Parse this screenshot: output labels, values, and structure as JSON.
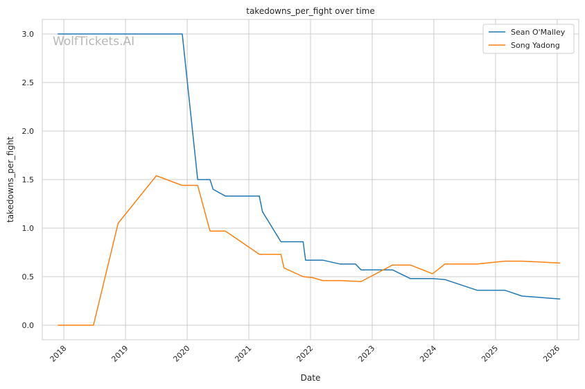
{
  "chart_data": {
    "type": "line",
    "title": "takedowns_per_fight over time",
    "xlabel": "Date",
    "ylabel": "takedowns_per_fight",
    "watermark": "WolfTickets.AI",
    "xlim": [
      2017.65,
      2026.35
    ],
    "ylim": [
      -0.15,
      3.15
    ],
    "x_ticks": [
      2018,
      2019,
      2020,
      2021,
      2022,
      2023,
      2024,
      2025,
      2026
    ],
    "x_tick_labels": [
      "2018",
      "2019",
      "2020",
      "2021",
      "2022",
      "2023",
      "2024",
      "2025",
      "2026"
    ],
    "y_ticks": [
      0.0,
      0.5,
      1.0,
      1.5,
      2.0,
      2.5,
      3.0
    ],
    "y_tick_labels": [
      "0.0",
      "0.5",
      "1.0",
      "1.5",
      "2.0",
      "2.5",
      "3.0"
    ],
    "grid": true,
    "legend_position": "top-right",
    "series": [
      {
        "name": "Sean O'Malley",
        "color": "#1f77b4",
        "x": [
          2017.9,
          2019.92,
          2020.17,
          2020.37,
          2020.42,
          2020.62,
          2021.17,
          2021.22,
          2021.52,
          2021.88,
          2021.92,
          2022.2,
          2022.48,
          2022.73,
          2022.82,
          2023.33,
          2023.62,
          2023.98,
          2024.18,
          2024.7,
          2025.15,
          2025.43,
          2026.05
        ],
        "y": [
          3.0,
          3.0,
          1.5,
          1.5,
          1.4,
          1.33,
          1.33,
          1.17,
          0.86,
          0.86,
          0.67,
          0.67,
          0.63,
          0.63,
          0.57,
          0.57,
          0.48,
          0.48,
          0.47,
          0.36,
          0.36,
          0.3,
          0.27
        ]
      },
      {
        "name": "Song Yadong",
        "color": "#ff7f0e",
        "x": [
          2017.9,
          2018.48,
          2018.88,
          2019.5,
          2019.92,
          2020.17,
          2020.37,
          2020.62,
          2021.17,
          2021.52,
          2021.57,
          2021.88,
          2022.03,
          2022.2,
          2022.48,
          2022.82,
          2023.33,
          2023.62,
          2023.98,
          2024.18,
          2024.7,
          2025.15,
          2025.43,
          2026.05
        ],
        "y": [
          0.0,
          0.0,
          1.05,
          1.54,
          1.44,
          1.44,
          0.97,
          0.97,
          0.73,
          0.73,
          0.59,
          0.5,
          0.49,
          0.46,
          0.46,
          0.45,
          0.62,
          0.62,
          0.53,
          0.63,
          0.63,
          0.66,
          0.66,
          0.64
        ]
      }
    ]
  }
}
